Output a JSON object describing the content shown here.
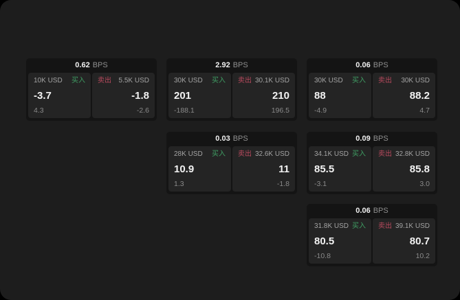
{
  "labels": {
    "buy": "买入",
    "sell": "卖出",
    "bps_unit": "BPS"
  },
  "colors": {
    "window_bg": "#1d1d1d",
    "card_bg": "#141414",
    "panel_bg": "#242424",
    "buy_green": "#3f9e63",
    "sell_red": "#b94a5e",
    "value_white": "#f2f2f2",
    "label_gray": "#a3a3a3",
    "muted_gray": "#8a8a8a"
  },
  "cards": [
    {
      "bps": "0.62",
      "buy": {
        "amount": "10K USD",
        "value": "-3.7",
        "sub": "4.3"
      },
      "sell": {
        "amount": "5.5K USD",
        "value": "-1.8",
        "sub": "-2.6"
      }
    },
    {
      "bps": "2.92",
      "buy": {
        "amount": "30K USD",
        "value": "201",
        "sub": "-188.1"
      },
      "sell": {
        "amount": "30.1K USD",
        "value": "210",
        "sub": "196.5"
      }
    },
    {
      "bps": "0.06",
      "buy": {
        "amount": "30K USD",
        "value": "88",
        "sub": "-4.9"
      },
      "sell": {
        "amount": "30K USD",
        "value": "88.2",
        "sub": "4.7"
      }
    },
    {
      "bps": "0.03",
      "buy": {
        "amount": "28K USD",
        "value": "10.9",
        "sub": "1.3"
      },
      "sell": {
        "amount": "32.6K USD",
        "value": "11",
        "sub": "-1.8"
      }
    },
    {
      "bps": "0.09",
      "buy": {
        "amount": "34.1K USD",
        "value": "85.5",
        "sub": "-3.1"
      },
      "sell": {
        "amount": "32.8K USD",
        "value": "85.8",
        "sub": "3.0"
      }
    },
    {
      "bps": "0.06",
      "buy": {
        "amount": "31.8K USD",
        "value": "80.5",
        "sub": "-10.8"
      },
      "sell": {
        "amount": "39.1K USD",
        "value": "80.7",
        "sub": "10.2"
      }
    }
  ]
}
